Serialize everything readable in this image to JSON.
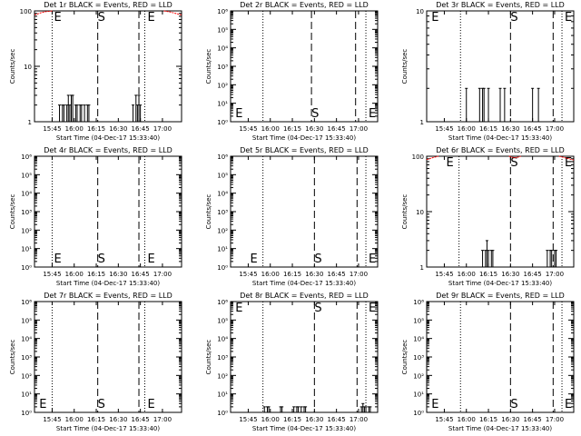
{
  "colors": {
    "events": "#000000",
    "lld": "#ff0000",
    "background": "#ffffff"
  },
  "chart_data": [
    {
      "type": "line",
      "title": "Det 1r BLACK = Events, RED = LLD",
      "xlabel": "Start Time (04-Dec-17 15:33:40)",
      "ylabel": "Counts/sec",
      "xticks": [
        "15:45",
        "16:00",
        "16:15",
        "16:30",
        "16:45",
        "17:00"
      ],
      "xlim_min": [
        0,
        100
      ],
      "yscale": "log",
      "ylim": [
        1,
        100
      ],
      "yticks": [
        "1",
        "10",
        "100"
      ],
      "markers": {
        "E1": "E",
        "S": "S",
        "E2": "E"
      },
      "marker_time_min": {
        "E1": 12,
        "S": 43,
        "E2": 75
      },
      "dashed_at_min": [
        43,
        71
      ],
      "dotted_at_min": [
        12,
        75
      ],
      "events_series": [
        {
          "t": 17,
          "v": 2
        },
        {
          "t": 18,
          "v": 1
        },
        {
          "t": 19,
          "v": 2
        },
        {
          "t": 20,
          "v": 2
        },
        {
          "t": 21,
          "v": 1
        },
        {
          "t": 22,
          "v": 2
        },
        {
          "t": 23,
          "v": 3
        },
        {
          "t": 24,
          "v": 2
        },
        {
          "t": 25,
          "v": 3
        },
        {
          "t": 26,
          "v": 3
        },
        {
          "t": 27,
          "v": 1
        },
        {
          "t": 28,
          "v": 2
        },
        {
          "t": 29,
          "v": 2
        },
        {
          "t": 30,
          "v": 1
        },
        {
          "t": 31,
          "v": 2
        },
        {
          "t": 32,
          "v": 2
        },
        {
          "t": 33,
          "v": 1
        },
        {
          "t": 34,
          "v": 2
        },
        {
          "t": 35,
          "v": 1
        },
        {
          "t": 36,
          "v": 2
        },
        {
          "t": 37,
          "v": 2
        },
        {
          "t": 38,
          "v": 1
        },
        {
          "t": 67,
          "v": 2
        },
        {
          "t": 68,
          "v": 1
        },
        {
          "t": 69,
          "v": 3
        },
        {
          "t": 70,
          "v": 2
        },
        {
          "t": 71,
          "v": 3
        },
        {
          "t": 72,
          "v": 2
        },
        {
          "t": 73,
          "v": 1
        }
      ],
      "lld_series": [
        {
          "t": 0,
          "v": 85
        },
        {
          "t": 2,
          "v": 88
        },
        {
          "t": 4,
          "v": 92
        },
        {
          "t": 6,
          "v": 95
        },
        {
          "t": 8,
          "v": 97
        },
        {
          "t": 10,
          "v": 98
        },
        {
          "t": 12,
          "v": 100
        },
        {
          "t": 88,
          "v": 100
        },
        {
          "t": 90,
          "v": 98
        },
        {
          "t": 92,
          "v": 96
        },
        {
          "t": 94,
          "v": 93
        },
        {
          "t": 96,
          "v": 90
        },
        {
          "t": 98,
          "v": 87
        },
        {
          "t": 100,
          "v": 85
        }
      ]
    },
    {
      "type": "line",
      "title": "Det 2r BLACK = Events, RED = LLD",
      "xlabel": "Start Time (04-Dec-17 15:33:40)",
      "ylabel": "Counts/sec",
      "xticks": [
        "15:45",
        "16:00",
        "16:15",
        "16:30",
        "16:45",
        "17:00"
      ],
      "xlim_min": [
        0,
        100
      ],
      "yscale": "log",
      "ylim": [
        1,
        1000000
      ],
      "yticks": [
        "10⁰",
        "10¹",
        "10²",
        "10³",
        "10⁴",
        "10⁵",
        "10⁶"
      ],
      "markers": {
        "E1": "E",
        "S": "S",
        "E2": "E"
      },
      "marker_time_min": {
        "E1": 2,
        "S": 55,
        "E2": 92
      },
      "dashed_at_min": [
        55,
        85
      ],
      "dotted_at_min": [
        22,
        92
      ],
      "events_series": [],
      "lld_series": []
    },
    {
      "type": "line",
      "title": "Det 3r BLACK = Events, RED = LLD",
      "xlabel": "Start Time (04-Dec-17 15:33:40)",
      "ylabel": "Counts/sec",
      "xticks": [
        "15:45",
        "16:00",
        "16:15",
        "16:30",
        "16:45",
        "17:00"
      ],
      "xlim_min": [
        0,
        100
      ],
      "yscale": "log",
      "ylim": [
        1,
        10
      ],
      "yticks": [
        "1",
        "10"
      ],
      "markers": {
        "E1": "E",
        "S": "S",
        "E2": "E"
      },
      "marker_time_min": {
        "E1": 2,
        "S": 57,
        "E2": 92
      },
      "dashed_at_min": [
        57,
        86
      ],
      "dotted_at_min": [
        23,
        92
      ],
      "events_series": [
        {
          "t": 27,
          "v": 2
        },
        {
          "t": 28,
          "v": 1
        },
        {
          "t": 36,
          "v": 2
        },
        {
          "t": 37,
          "v": 1
        },
        {
          "t": 38,
          "v": 2
        },
        {
          "t": 39,
          "v": 2
        },
        {
          "t": 40,
          "v": 1
        },
        {
          "t": 41,
          "v": 1
        },
        {
          "t": 42,
          "v": 2
        },
        {
          "t": 43,
          "v": 1
        },
        {
          "t": 50,
          "v": 2
        },
        {
          "t": 51,
          "v": 1
        },
        {
          "t": 53,
          "v": 2
        },
        {
          "t": 54,
          "v": 1
        },
        {
          "t": 72,
          "v": 2
        },
        {
          "t": 73,
          "v": 1
        },
        {
          "t": 76,
          "v": 2
        },
        {
          "t": 77,
          "v": 1
        }
      ],
      "lld_series": []
    },
    {
      "type": "line",
      "title": "Det 4r BLACK = Events, RED = LLD",
      "xlabel": "Start Time (04-Dec-17 15:33:40)",
      "ylabel": "Counts/sec",
      "xticks": [
        "15:45",
        "16:00",
        "16:15",
        "16:30",
        "16:45",
        "17:00"
      ],
      "xlim_min": [
        0,
        100
      ],
      "yscale": "log",
      "ylim": [
        1,
        1000000
      ],
      "yticks": [
        "10⁰",
        "10¹",
        "10²",
        "10³",
        "10⁴",
        "10⁵",
        "10⁶"
      ],
      "markers": {
        "E1": "E",
        "S": "S",
        "E2": "E"
      },
      "marker_time_min": {
        "E1": 12,
        "S": 43,
        "E2": 75
      },
      "dashed_at_min": [
        43,
        71
      ],
      "dotted_at_min": [
        12,
        75
      ],
      "events_series": [],
      "lld_series": []
    },
    {
      "type": "line",
      "title": "Det 5r BLACK = Events, RED = LLD",
      "xlabel": "Start Time (04-Dec-17 15:33:40)",
      "ylabel": "Counts/sec",
      "xticks": [
        "15:45",
        "16:00",
        "16:15",
        "16:30",
        "16:45",
        "17:00"
      ],
      "xlim_min": [
        0,
        100
      ],
      "yscale": "log",
      "ylim": [
        1,
        1000000
      ],
      "yticks": [
        "10⁰",
        "10¹",
        "10²",
        "10³",
        "10⁴",
        "10⁵",
        "10⁶"
      ],
      "markers": {
        "E1": "E",
        "S": "S",
        "E2": "E"
      },
      "marker_time_min": {
        "E1": 12,
        "S": 57,
        "E2": 92
      },
      "dashed_at_min": [
        57,
        86
      ],
      "dotted_at_min": [
        22,
        92
      ],
      "events_series": [],
      "lld_series": []
    },
    {
      "type": "line",
      "title": "Det 6r BLACK = Events, RED = LLD",
      "xlabel": "Start Time (04-Dec-17 15:33:40)",
      "ylabel": "Counts/sec",
      "xticks": [
        "15:45",
        "16:00",
        "16:15",
        "16:30",
        "16:45",
        "17:00"
      ],
      "xlim_min": [
        0,
        100
      ],
      "yscale": "log",
      "ylim": [
        1,
        100
      ],
      "yticks": [
        "1",
        "10",
        "100"
      ],
      "markers": {
        "E1": "E",
        "S": "S",
        "E2": "E"
      },
      "marker_time_min": {
        "E1": 12,
        "S": 57,
        "E2": 92
      },
      "dashed_at_min": [
        57,
        86
      ],
      "dotted_at_min": [
        22,
        92
      ],
      "events_series": [
        {
          "t": 38,
          "v": 2
        },
        {
          "t": 39,
          "v": 1
        },
        {
          "t": 40,
          "v": 2
        },
        {
          "t": 41,
          "v": 3
        },
        {
          "t": 42,
          "v": 2
        },
        {
          "t": 43,
          "v": 1
        },
        {
          "t": 44,
          "v": 2
        },
        {
          "t": 45,
          "v": 2
        },
        {
          "t": 46,
          "v": 1
        },
        {
          "t": 82,
          "v": 2
        },
        {
          "t": 83,
          "v": 1
        },
        {
          "t": 84,
          "v": 2
        },
        {
          "t": 85,
          "v": 2
        },
        {
          "t": 86,
          "v": 1
        },
        {
          "t": 87,
          "v": 2
        },
        {
          "t": 88,
          "v": 2
        },
        {
          "t": 89,
          "v": 1
        }
      ],
      "lld_series": [
        {
          "t": 0,
          "v": 87
        },
        {
          "t": 2,
          "v": 90
        },
        {
          "t": 4,
          "v": 94
        },
        {
          "t": 6,
          "v": 97
        },
        {
          "t": 8,
          "v": 100
        },
        {
          "t": 56,
          "v": 100
        },
        {
          "t": 58,
          "v": 96
        },
        {
          "t": 60,
          "v": 94
        },
        {
          "t": 62,
          "v": 96
        },
        {
          "t": 64,
          "v": 100
        },
        {
          "t": 90,
          "v": 100
        },
        {
          "t": 92,
          "v": 97
        },
        {
          "t": 94,
          "v": 94
        },
        {
          "t": 96,
          "v": 91
        },
        {
          "t": 98,
          "v": 88
        },
        {
          "t": 100,
          "v": 86
        }
      ]
    },
    {
      "type": "line",
      "title": "Det 7r BLACK = Events, RED = LLD",
      "xlabel": "Start Time (04-Dec-17 15:33:40)",
      "ylabel": "Counts/sec",
      "xticks": [
        "15:45",
        "16:00",
        "16:15",
        "16:30",
        "16:45",
        "17:00"
      ],
      "xlim_min": [
        0,
        100
      ],
      "yscale": "log",
      "ylim": [
        1,
        1000000
      ],
      "yticks": [
        "10⁰",
        "10¹",
        "10²",
        "10³",
        "10⁴",
        "10⁵",
        "10⁶"
      ],
      "markers": {
        "E1": "E",
        "S": "S",
        "E2": "E"
      },
      "marker_time_min": {
        "E1": 2,
        "S": 43,
        "E2": 75
      },
      "dashed_at_min": [
        43,
        71
      ],
      "dotted_at_min": [
        12,
        75
      ],
      "events_series": [],
      "lld_series": []
    },
    {
      "type": "line",
      "title": "Det 8r BLACK = Events, RED = LLD",
      "xlabel": "Start Time (04-Dec-17 15:33:40)",
      "ylabel": "Counts/sec",
      "xticks": [
        "15:45",
        "16:00",
        "16:15",
        "16:30",
        "16:45",
        "17:00"
      ],
      "xlim_min": [
        0,
        100
      ],
      "yscale": "log",
      "ylim": [
        1,
        1000000
      ],
      "yticks": [
        "10⁰",
        "10¹",
        "10²",
        "10³",
        "10⁴",
        "10⁵",
        "10⁶"
      ],
      "markers": {
        "E1": "E",
        "S": "S",
        "E2": "E"
      },
      "marker_time_min": {
        "E1": 2,
        "S": 57,
        "E2": 92
      },
      "dashed_at_min": [
        57,
        86
      ],
      "dotted_at_min": [
        22,
        92
      ],
      "events_series": [
        {
          "t": 23,
          "v": 2
        },
        {
          "t": 24,
          "v": 1
        },
        {
          "t": 25,
          "v": 2
        },
        {
          "t": 26,
          "v": 2
        },
        {
          "t": 27,
          "v": 1
        },
        {
          "t": 34,
          "v": 2
        },
        {
          "t": 35,
          "v": 2
        },
        {
          "t": 36,
          "v": 1
        },
        {
          "t": 43,
          "v": 2
        },
        {
          "t": 44,
          "v": 1
        },
        {
          "t": 45,
          "v": 2
        },
        {
          "t": 46,
          "v": 2
        },
        {
          "t": 47,
          "v": 1
        },
        {
          "t": 48,
          "v": 2
        },
        {
          "t": 49,
          "v": 1
        },
        {
          "t": 50,
          "v": 2
        },
        {
          "t": 51,
          "v": 2
        },
        {
          "t": 52,
          "v": 1
        },
        {
          "t": 89,
          "v": 2
        },
        {
          "t": 90,
          "v": 3
        },
        {
          "t": 91,
          "v": 2
        },
        {
          "t": 92,
          "v": 2
        },
        {
          "t": 93,
          "v": 1
        },
        {
          "t": 94,
          "v": 2
        },
        {
          "t": 95,
          "v": 2
        },
        {
          "t": 96,
          "v": 1
        }
      ],
      "lld_series": []
    },
    {
      "type": "line",
      "title": "Det 9r BLACK = Events, RED = LLD",
      "xlabel": "Start Time (04-Dec-17 15:33:40)",
      "ylabel": "Counts/sec",
      "xticks": [
        "15:45",
        "16:00",
        "16:15",
        "16:30",
        "16:45",
        "17:00"
      ],
      "xlim_min": [
        0,
        100
      ],
      "yscale": "log",
      "ylim": [
        1,
        1000000
      ],
      "yticks": [
        "10⁰",
        "10¹",
        "10²",
        "10³",
        "10⁴",
        "10⁵",
        "10⁶"
      ],
      "markers": {
        "E1": "E",
        "S": "S",
        "E2": "E"
      },
      "marker_time_min": {
        "E1": 2,
        "S": 57,
        "E2": 92
      },
      "dashed_at_min": [
        57,
        86
      ],
      "dotted_at_min": [
        23,
        92
      ],
      "events_series": [],
      "lld_series": []
    }
  ]
}
